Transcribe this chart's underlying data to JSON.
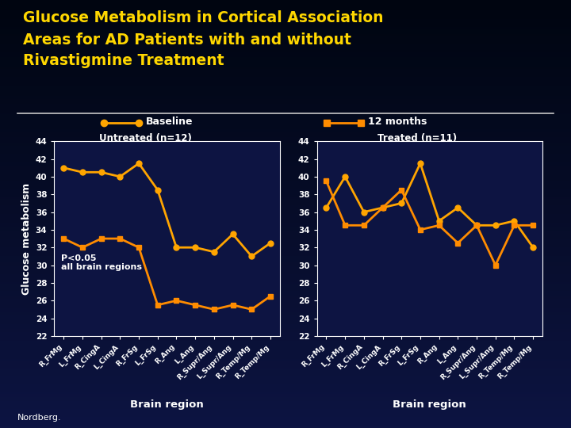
{
  "title_line1": "Glucose Metabolism in Cortical Association",
  "title_line2": "Areas for AD Patients with and without",
  "title_line3": "Rivastigmine Treatment",
  "title_color": "#FFD700",
  "bg_color": "#0d1442",
  "plot_bg_color": "#0d1442",
  "ylabel": "Glucose metabolism",
  "xlabel": "Brain region",
  "ylim": [
    22,
    44
  ],
  "yticks": [
    22,
    24,
    26,
    28,
    30,
    32,
    34,
    36,
    38,
    40,
    42,
    44
  ],
  "categories": [
    "R_FrMg",
    "L_FrMg",
    "R_CingA",
    "L_CingA",
    "R_FrSg",
    "L_FrSg",
    "R_Ang",
    "L_Ang",
    "R_Supr/Ang",
    "L_Supr/Ang",
    "R_Temp/Mg",
    "R_Temp/Mg"
  ],
  "left_title": "Untreated (n=12)",
  "right_title": "Treated (n=11)",
  "legend_baseline": "Baseline",
  "legend_12months": "12 months",
  "line_color_baseline": "#FFA500",
  "line_color_12months": "#FF8C00",
  "left_baseline": [
    41.0,
    40.5,
    40.5,
    40.0,
    41.5,
    38.5,
    32.0,
    32.0,
    31.5,
    33.5,
    31.0,
    32.5
  ],
  "left_12months": [
    33.0,
    32.0,
    33.0,
    33.0,
    32.0,
    25.5,
    26.0,
    25.5,
    25.0,
    25.5,
    25.0,
    26.5
  ],
  "right_baseline": [
    36.5,
    40.0,
    36.0,
    36.5,
    37.0,
    41.5,
    35.0,
    36.5,
    34.5,
    34.5,
    35.0,
    32.0
  ],
  "right_12months": [
    39.5,
    34.5,
    34.5,
    36.5,
    38.5,
    34.0,
    34.5,
    32.5,
    34.5,
    30.0,
    34.5,
    34.5
  ],
  "annotation_text": "P<0.05\nall brain regions",
  "footer_text": "Nordberg.",
  "axis_color": "white",
  "tick_color": "white"
}
